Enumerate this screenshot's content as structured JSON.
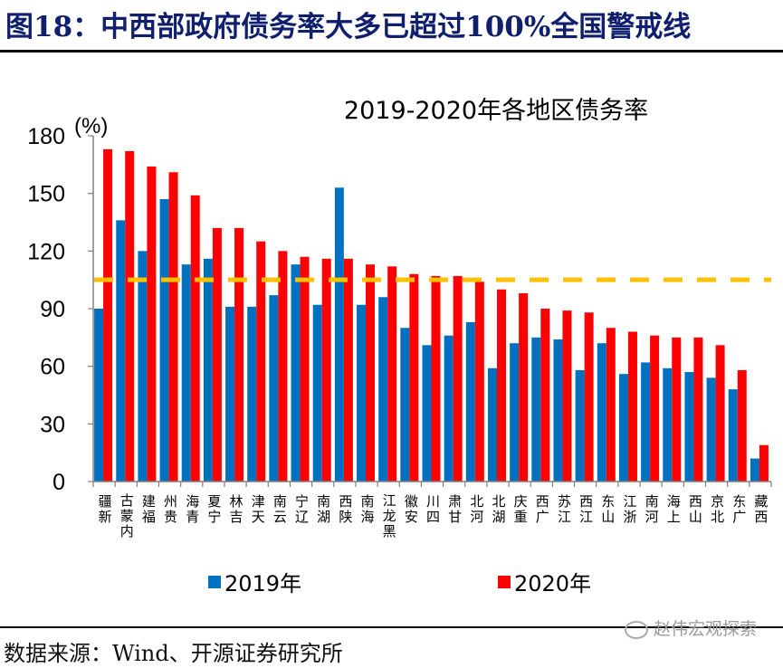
{
  "figure": {
    "title": "图18：中西部政府债务率大多已超过100%全国警戒线",
    "source": "数据来源：Wind、开源证券研究所",
    "watermark": "赵伟宏观探索"
  },
  "chart_data": {
    "type": "bar",
    "title": "2019-2020年各地区债务率",
    "xlabel": "",
    "ylabel": "(%)",
    "ylim": [
      0,
      180
    ],
    "yticks": [
      0,
      30,
      60,
      90,
      120,
      150,
      180
    ],
    "grid": false,
    "legend_position": "bottom",
    "categories": [
      "新疆",
      "内蒙古",
      "福建",
      "贵州",
      "青海",
      "宁夏",
      "吉林",
      "天津",
      "云南",
      "辽宁",
      "湖南",
      "陕西",
      "海南",
      "黑龙江",
      "安徽",
      "四川",
      "甘肃",
      "河北",
      "湖北",
      "重庆",
      "广西",
      "江苏",
      "江西",
      "山东",
      "浙江",
      "河南",
      "上海",
      "山西",
      "北京",
      "广东",
      "西藏"
    ],
    "series": [
      {
        "name": "2019年",
        "color": "#0070c0",
        "values": [
          90,
          136,
          120,
          147,
          113,
          116,
          91,
          91,
          97,
          113,
          92,
          153,
          92,
          96,
          80,
          71,
          76,
          83,
          59,
          72,
          75,
          74,
          58,
          72,
          56,
          62,
          59,
          57,
          54,
          48,
          12
        ]
      },
      {
        "name": "2020年",
        "color": "#ff0000",
        "values": [
          173,
          172,
          164,
          161,
          149,
          132,
          132,
          125,
          120,
          117,
          116,
          116,
          113,
          112,
          108,
          107,
          107,
          104,
          100,
          98,
          90,
          89,
          88,
          80,
          78,
          76,
          75,
          75,
          71,
          58,
          19
        ]
      }
    ],
    "reference_line": {
      "value": 105,
      "color": "#ffc000",
      "style": "dashed",
      "label": "全国警戒线"
    }
  }
}
